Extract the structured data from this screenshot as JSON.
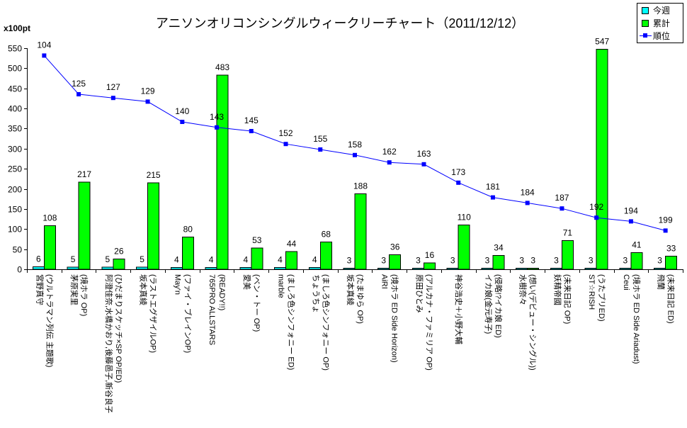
{
  "chart_data": {
    "type": "bar",
    "title": "アニソンオリコンシングルウィークリーチャート（2011/12/12）",
    "ylabel": "x100pt",
    "ylim": [
      0,
      550
    ],
    "yticks": [
      0,
      50,
      100,
      150,
      200,
      250,
      300,
      350,
      400,
      450,
      500,
      550
    ],
    "y2lim": [
      100,
      220
    ],
    "y2_reversed": true,
    "y2_axis_shown": false,
    "grid": false,
    "data_labels": true,
    "legend_position": "top-right",
    "categories": [
      [
        "宮野真守",
        "(ウルトラマン列伝 主題歌)"
      ],
      [
        "茅原実里",
        "(境ホラ OP)"
      ],
      [
        "阿澄佳奈,水橋かおり,後藤邑子,新谷良子",
        "(ひだまりスケッチ×SP OP/ED)"
      ],
      [
        "坂本真綾",
        "(ラストエグザイルOP)"
      ],
      [
        "May'n",
        "(ファイ・ブレインOP)"
      ],
      [
        "765PRO ALLSTARS",
        "(READY!!)"
      ],
      [
        "愛美",
        "(ベン・トー OP)"
      ],
      [
        "marble",
        "(ましろ色シンフォニー ED)"
      ],
      [
        "ちょうちょ",
        "(ましろ色シンフォニー OP)"
      ],
      [
        "坂本真綾",
        "(たまゆら OP)"
      ],
      [
        "AiRI",
        "(境ホラ ED Side Horizon)"
      ],
      [
        "原田ひとみ",
        "(アルカナ・ファミリア OP)"
      ],
      [
        "神谷浩史＋小野大輔"
      ],
      [
        "イカ娘(金元寿子)",
        "(侵略!?イカ娘 ED)"
      ],
      [
        "水樹奈々",
        "(想い(デビュー・シングル))"
      ],
      [
        "妖精帝國",
        "(未来日記 OP)"
      ],
      [
        "ST☆RISH",
        "(うたプリED)"
      ],
      [
        "Ceui",
        "(境ホラ ED Side Ariadust)"
      ],
      [
        "飛蘭",
        "(未来日記 ED)"
      ]
    ],
    "series": [
      {
        "name": "今週",
        "type": "bar",
        "axis": "y",
        "color": "#00ffff",
        "values": [
          6,
          5,
          5,
          5,
          4,
          4,
          4,
          4,
          4,
          3,
          3,
          3,
          3,
          3,
          3,
          3,
          3,
          3,
          3
        ]
      },
      {
        "name": "累計",
        "type": "bar",
        "axis": "y",
        "color": "#00ff00",
        "values": [
          108,
          217,
          26,
          215,
          80,
          483,
          53,
          44,
          68,
          188,
          36,
          16,
          110,
          34,
          3,
          71,
          547,
          41,
          33
        ]
      },
      {
        "name": "順位",
        "type": "line",
        "axis": "y2",
        "marker": "square",
        "color": "#0000ff",
        "values": [
          104,
          125,
          127,
          129,
          140,
          143,
          145,
          152,
          155,
          158,
          162,
          163,
          173,
          181,
          184,
          187,
          192,
          194,
          199
        ]
      }
    ]
  }
}
